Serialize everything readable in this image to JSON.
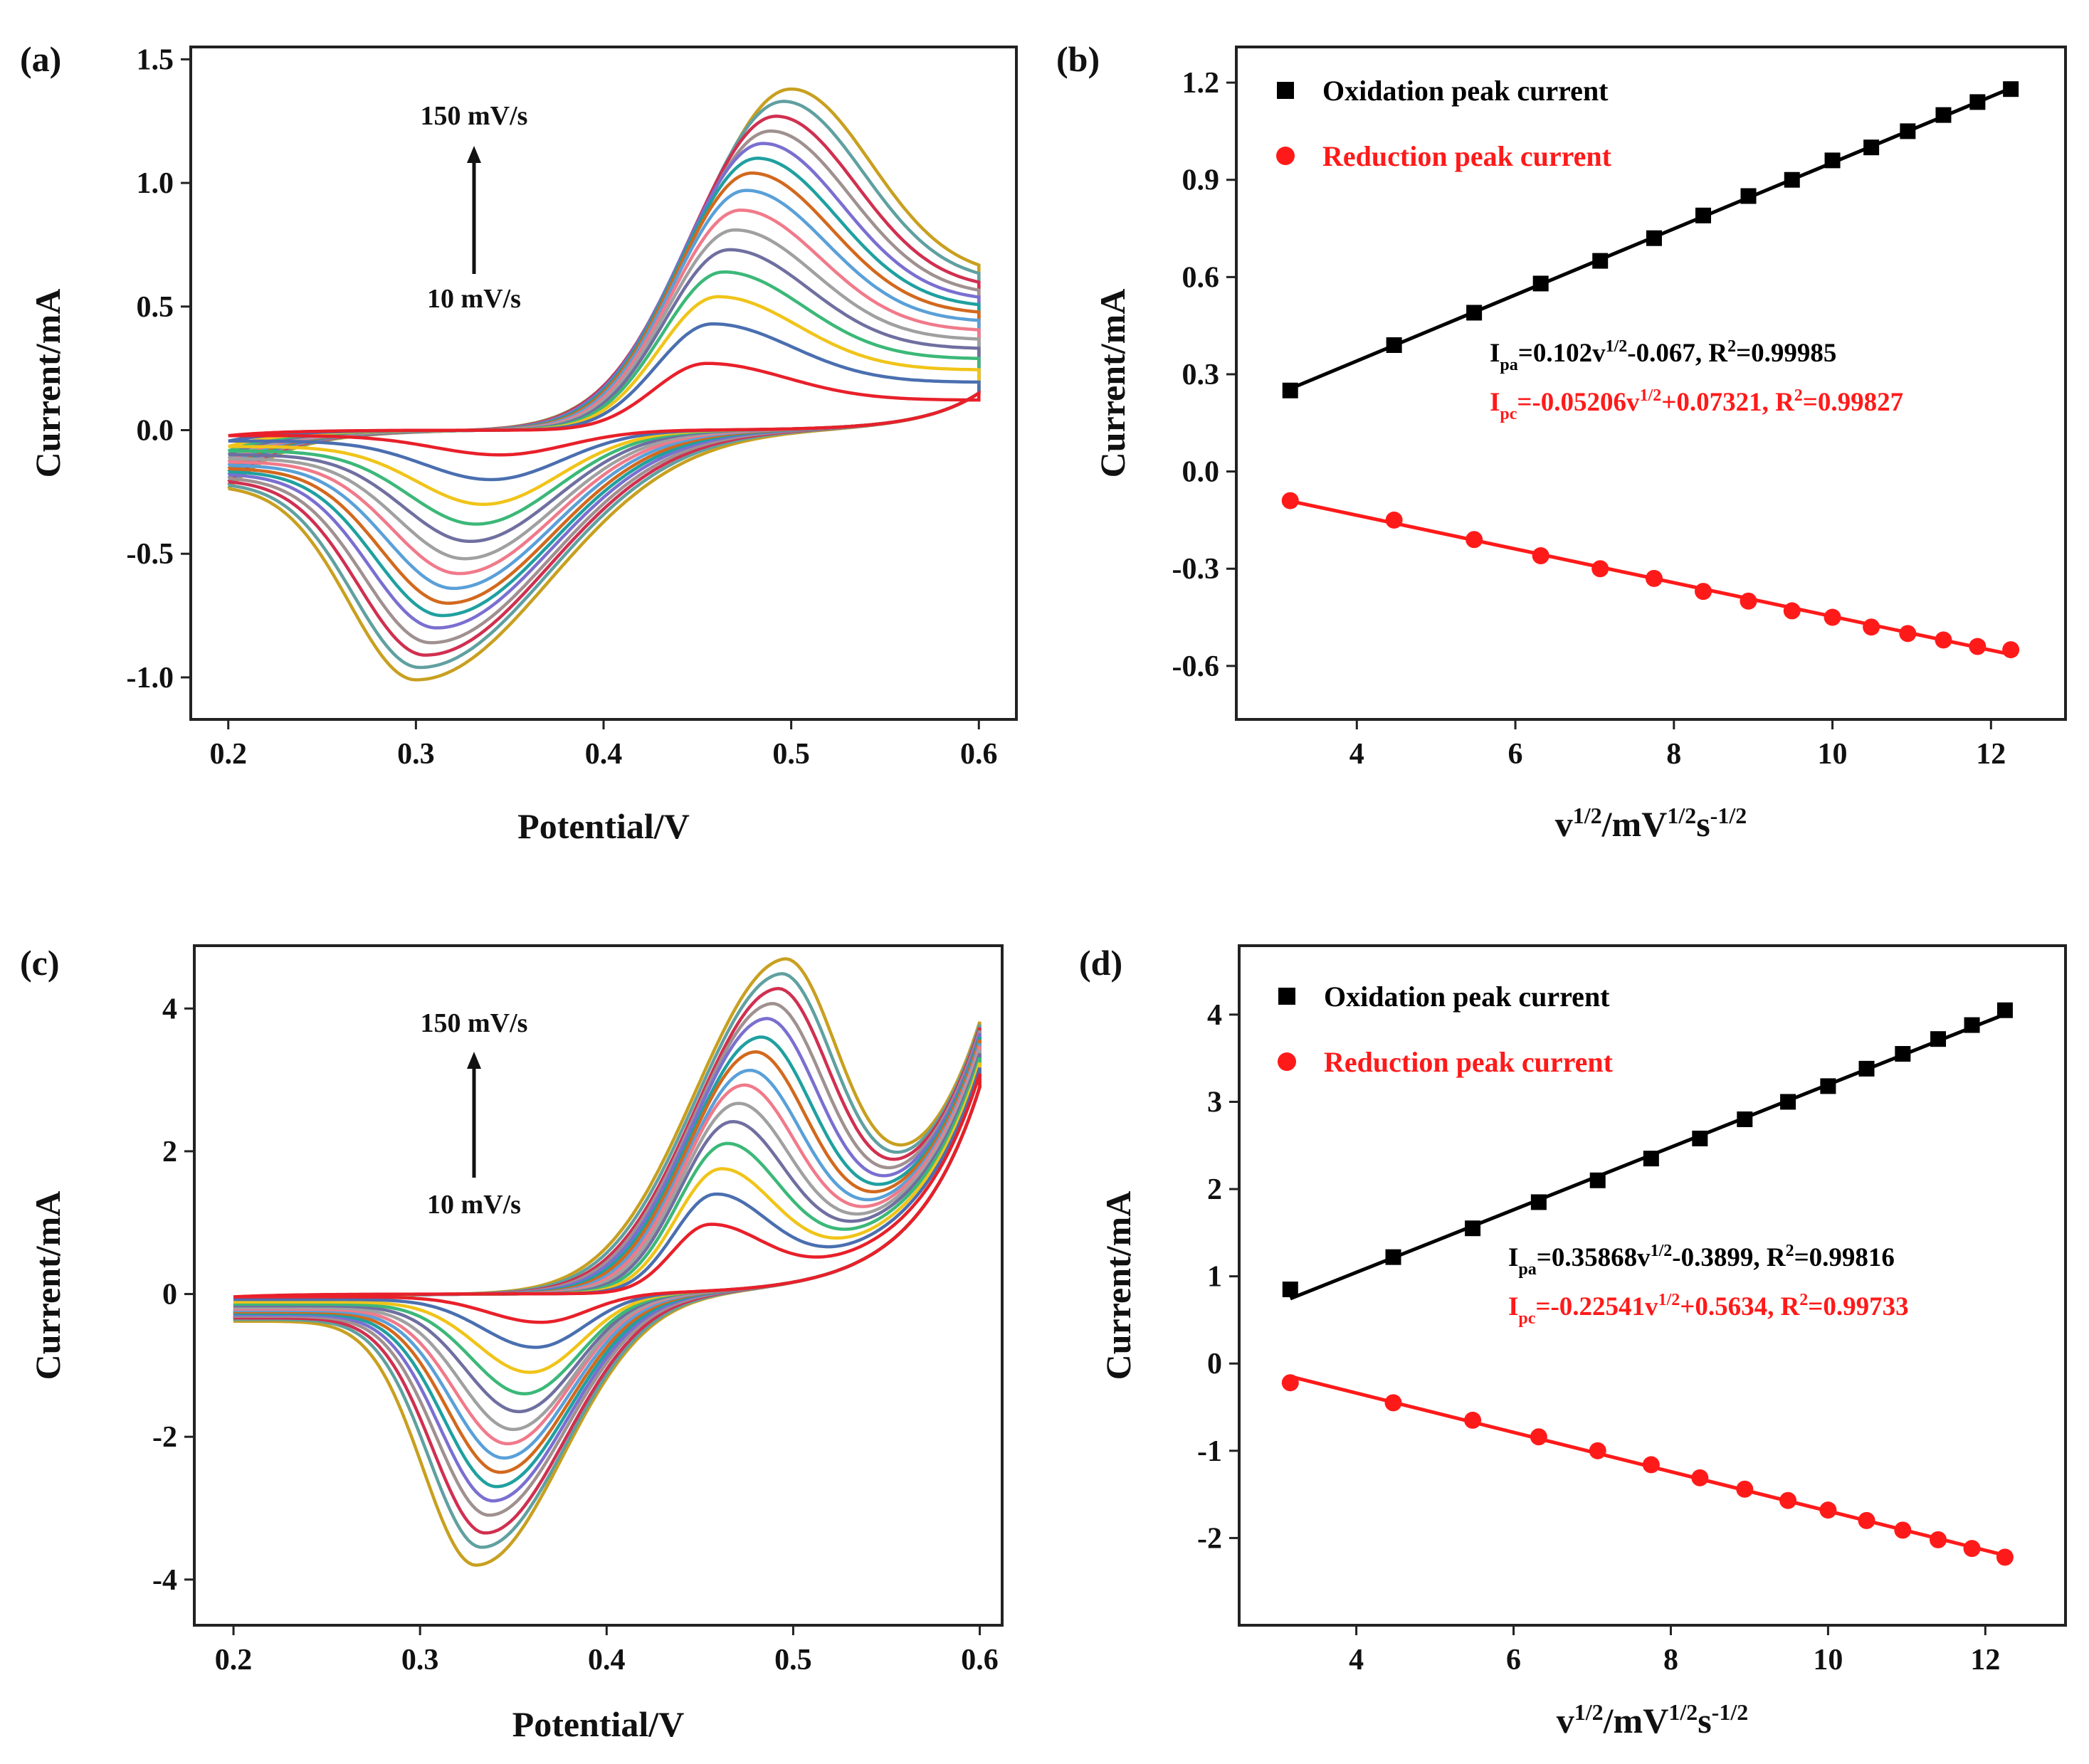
{
  "chart_data": [
    {
      "panel_label": "(a)",
      "type": "line",
      "xlabel": "Potential/V",
      "ylabel": "Current/mA",
      "xlim": [
        0.18,
        0.62
      ],
      "ylim": [
        -1.17,
        1.55
      ],
      "xticks": [
        0.2,
        0.3,
        0.4,
        0.5,
        0.6
      ],
      "xtick_labels": [
        "0.2",
        "0.3",
        "0.4",
        "0.5",
        "0.6"
      ],
      "yticks": [
        -1.0,
        -0.5,
        0.0,
        0.5,
        1.0,
        1.5
      ],
      "ytick_labels": [
        "-1.0",
        "-0.5",
        "0.0",
        "0.5",
        "1.0",
        "1.5"
      ],
      "grid": false,
      "annotations": {
        "top": "150 mV/s",
        "bottom": "10 mV/s",
        "arrow": "up"
      },
      "potential_window": [
        0.2,
        0.6
      ],
      "colors": [
        "#e8202a",
        "#4a6fb0",
        "#f0c419",
        "#3cb878",
        "#6f6fa0",
        "#a0a0a0",
        "#f07a8a",
        "#5aa0d8",
        "#d2691e",
        "#20a0a0",
        "#7a6fd0",
        "#a09090",
        "#d03050",
        "#60a0a0",
        "#c8a020"
      ],
      "series": {
        "anodic_peak_potential": [
          0.455,
          0.458,
          0.461,
          0.464,
          0.467,
          0.47,
          0.473,
          0.476,
          0.479,
          0.482,
          0.485,
          0.489,
          0.492,
          0.496,
          0.5
        ],
        "anodic_peak_current": [
          0.27,
          0.43,
          0.54,
          0.64,
          0.73,
          0.81,
          0.89,
          0.97,
          1.04,
          1.1,
          1.16,
          1.21,
          1.27,
          1.33,
          1.38
        ],
        "cathodic_peak_potential": [
          0.345,
          0.34,
          0.336,
          0.332,
          0.329,
          0.326,
          0.323,
          0.32,
          0.317,
          0.314,
          0.311,
          0.308,
          0.305,
          0.302,
          0.3
        ],
        "cathodic_peak_current": [
          -0.1,
          -0.2,
          -0.3,
          -0.38,
          -0.45,
          -0.52,
          -0.58,
          -0.64,
          -0.7,
          -0.75,
          -0.8,
          -0.86,
          -0.91,
          -0.96,
          -1.01
        ]
      }
    },
    {
      "panel_label": "(b)",
      "type": "scatter",
      "xlabel_parts": [
        "v",
        "1/2",
        "/mV",
        "1/2",
        "s",
        "-1/2"
      ],
      "ylabel": "Current/mA",
      "xlim": [
        2.48,
        12.94
      ],
      "ylim": [
        -0.765,
        1.31
      ],
      "xticks": [
        4,
        6,
        8,
        10,
        12
      ],
      "xtick_labels": [
        "4",
        "6",
        "8",
        "10",
        "12"
      ],
      "yticks": [
        -0.6,
        -0.3,
        0.0,
        0.3,
        0.6,
        0.9,
        1.2
      ],
      "ytick_labels": [
        "-0.6",
        "-0.3",
        "0.0",
        "0.3",
        "0.6",
        "0.9",
        "1.2"
      ],
      "grid": false,
      "legend_position": "top-left",
      "x": [
        3.16,
        4.47,
        5.48,
        6.32,
        7.07,
        7.75,
        8.37,
        8.94,
        9.49,
        10.0,
        10.49,
        10.95,
        11.4,
        11.83,
        12.25
      ],
      "series": [
        {
          "name": "Oxidation peak current",
          "color": "#000000",
          "marker": "square",
          "values": [
            0.25,
            0.39,
            0.49,
            0.58,
            0.65,
            0.72,
            0.79,
            0.85,
            0.9,
            0.96,
            1.0,
            1.05,
            1.1,
            1.14,
            1.18
          ],
          "fit": {
            "slope": 0.102,
            "intercept": -0.067
          },
          "equation_parts": [
            "I",
            "pa",
            "=0.102v",
            "1/2",
            "-0.067, R",
            "2",
            "=0.99985"
          ]
        },
        {
          "name": "Reduction peak current",
          "color": "#ff1a1a",
          "marker": "circle",
          "values": [
            -0.09,
            -0.15,
            -0.21,
            -0.26,
            -0.3,
            -0.33,
            -0.37,
            -0.4,
            -0.43,
            -0.45,
            -0.48,
            -0.5,
            -0.52,
            -0.54,
            -0.55
          ],
          "fit": {
            "slope": -0.05206,
            "intercept": 0.07321
          },
          "equation_parts": [
            "I",
            "pc",
            "=-0.05206v",
            "1/2",
            "+0.07321, R",
            "2",
            "=0.99827"
          ]
        }
      ]
    },
    {
      "panel_label": "(c)",
      "type": "line",
      "xlabel": "Potential/V",
      "ylabel": "Current/mA",
      "xlim": [
        0.179,
        0.612
      ],
      "ylim": [
        -4.64,
        4.88
      ],
      "xticks": [
        0.2,
        0.3,
        0.4,
        0.5,
        0.6
      ],
      "xtick_labels": [
        "0.2",
        "0.3",
        "0.4",
        "0.5",
        "0.6"
      ],
      "yticks": [
        -4,
        -2,
        0,
        2,
        4
      ],
      "ytick_labels": [
        "-4",
        "-2",
        "0",
        "2",
        "4"
      ],
      "grid": false,
      "annotations": {
        "top": "150 mV/s",
        "bottom": "10 mV/s",
        "arrow": "up"
      },
      "potential_window": [
        0.2,
        0.6
      ],
      "colors": [
        "#e8202a",
        "#4a6fb0",
        "#f0c419",
        "#3cb878",
        "#6f6fa0",
        "#a0a0a0",
        "#f07a8a",
        "#5aa0d8",
        "#d2691e",
        "#20a0a0",
        "#7a6fd0",
        "#a09090",
        "#d03050",
        "#60a0a0",
        "#c8a020"
      ],
      "series": {
        "anodic_peak_potential": [
          0.455,
          0.458,
          0.461,
          0.464,
          0.467,
          0.47,
          0.473,
          0.476,
          0.479,
          0.482,
          0.485,
          0.488,
          0.491,
          0.493,
          0.495
        ],
        "anodic_peak_current": [
          0.93,
          1.35,
          1.7,
          2.05,
          2.35,
          2.6,
          2.85,
          3.05,
          3.3,
          3.5,
          3.75,
          3.95,
          4.15,
          4.35,
          4.55
        ],
        "cathodic_peak_potential": [
          0.365,
          0.362,
          0.359,
          0.356,
          0.353,
          0.35,
          0.347,
          0.345,
          0.343,
          0.341,
          0.339,
          0.337,
          0.335,
          0.333,
          0.33
        ],
        "cathodic_peak_current": [
          -0.4,
          -0.75,
          -1.1,
          -1.4,
          -1.65,
          -1.9,
          -2.1,
          -2.3,
          -2.5,
          -2.7,
          -2.9,
          -3.1,
          -3.35,
          -3.55,
          -3.8
        ]
      }
    },
    {
      "panel_label": "(d)",
      "type": "scatter",
      "xlabel_parts": [
        "v",
        "1/2",
        "/mV",
        "1/2",
        "s",
        "-1/2"
      ],
      "ylabel": "Current/mA",
      "xlim": [
        2.51,
        13.02
      ],
      "ylim": [
        -3.0,
        4.79
      ],
      "xticks": [
        4,
        6,
        8,
        10,
        12
      ],
      "xtick_labels": [
        "4",
        "6",
        "8",
        "10",
        "12"
      ],
      "yticks": [
        -2,
        -1,
        0,
        1,
        2,
        3,
        4
      ],
      "ytick_labels": [
        "-2",
        "-1",
        "0",
        "1",
        "2",
        "3",
        "4"
      ],
      "grid": false,
      "legend_position": "top-left",
      "x": [
        3.16,
        4.47,
        5.48,
        6.32,
        7.07,
        7.75,
        8.37,
        8.94,
        9.49,
        10.0,
        10.49,
        10.95,
        11.4,
        11.83,
        12.25
      ],
      "series": [
        {
          "name": "Oxidation peak current",
          "color": "#000000",
          "marker": "square",
          "values": [
            0.85,
            1.22,
            1.55,
            1.85,
            2.1,
            2.35,
            2.58,
            2.8,
            3.0,
            3.18,
            3.38,
            3.55,
            3.72,
            3.88,
            4.05
          ],
          "fit": {
            "slope": 0.35868,
            "intercept": -0.3899
          },
          "equation_parts": [
            "I",
            "pa",
            "=0.35868v",
            "1/2",
            "-0.3899, R",
            "2",
            "=0.99816"
          ]
        },
        {
          "name": "Reduction peak current",
          "color": "#ff1a1a",
          "marker": "circle",
          "values": [
            -0.22,
            -0.45,
            -0.65,
            -0.84,
            -1.0,
            -1.16,
            -1.31,
            -1.44,
            -1.57,
            -1.68,
            -1.8,
            -1.91,
            -2.02,
            -2.12,
            -2.22
          ],
          "fit": {
            "slope": -0.22541,
            "intercept": 0.5634
          },
          "equation_parts": [
            "I",
            "pc",
            "=-0.22541v",
            "1/2",
            "+0.5634, R",
            "2",
            "=0.99733"
          ]
        }
      ]
    }
  ]
}
